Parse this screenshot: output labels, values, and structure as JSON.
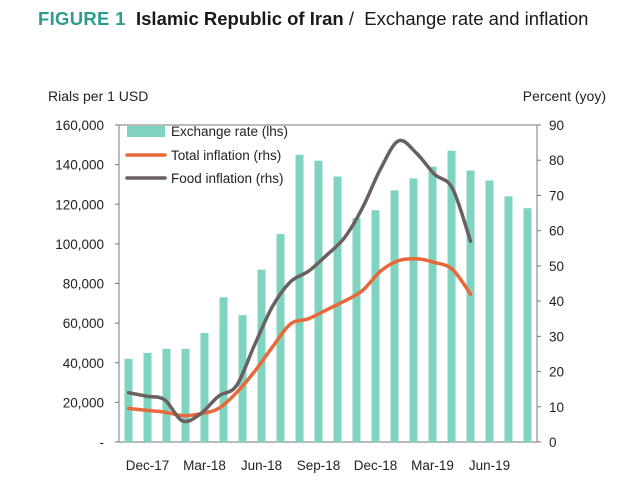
{
  "figure": {
    "label": "FIGURE 1",
    "country": "Islamic Republic of Iran",
    "separator": "/",
    "subject": "Exchange rate and inflation"
  },
  "chart_data": {
    "type": "bar+line",
    "title": "Exchange rate and inflation",
    "x_tick_labels": [
      "Dec-17",
      "Mar-18",
      "Jun-18",
      "Sep-18",
      "Dec-18",
      "Mar-19",
      "Jun-19"
    ],
    "left_axis": {
      "label": "Rials per 1 USD",
      "ticks": [
        "-",
        "20,000",
        "40,000",
        "60,000",
        "80,000",
        "100,000",
        "120,000",
        "140,000",
        "160,000"
      ],
      "ylim": [
        0,
        160000
      ]
    },
    "right_axis": {
      "label": "Percent (yoy)",
      "ticks": [
        "0",
        "10",
        "20",
        "30",
        "40",
        "50",
        "60",
        "70",
        "80",
        "90"
      ],
      "ylim": [
        0,
        90
      ]
    },
    "legend_position": "top-left",
    "series": [
      {
        "name": "Exchange rate (lhs)",
        "kind": "bar",
        "axis": "left",
        "color": "#7fd4c1",
        "values": [
          42000,
          45000,
          47000,
          47000,
          55000,
          73000,
          64000,
          87000,
          105000,
          145000,
          142000,
          134000,
          113000,
          117000,
          127000,
          133000,
          139000,
          147000,
          137000,
          132000,
          124000,
          118000
        ]
      },
      {
        "name": "Total inflation (rhs)",
        "kind": "line",
        "axis": "right",
        "color": "#e8683a",
        "values": [
          9.5,
          9.0,
          8.5,
          7.5,
          8.0,
          9.5,
          14.0,
          20.0,
          27.0,
          33.5,
          35.0,
          37.5,
          40.0,
          43.0,
          48.5,
          51.5,
          52.0,
          51.0,
          49.0,
          42.0
        ]
      },
      {
        "name": "Food inflation (rhs)",
        "kind": "line",
        "axis": "right",
        "color": "#6b6060",
        "values": [
          14.0,
          13.0,
          12.0,
          6.0,
          8.0,
          13.0,
          16.0,
          27.5,
          38.5,
          45.5,
          48.5,
          53.0,
          58.0,
          66.5,
          77.5,
          85.5,
          82.0,
          76.0,
          72.0,
          57.0
        ]
      }
    ]
  }
}
